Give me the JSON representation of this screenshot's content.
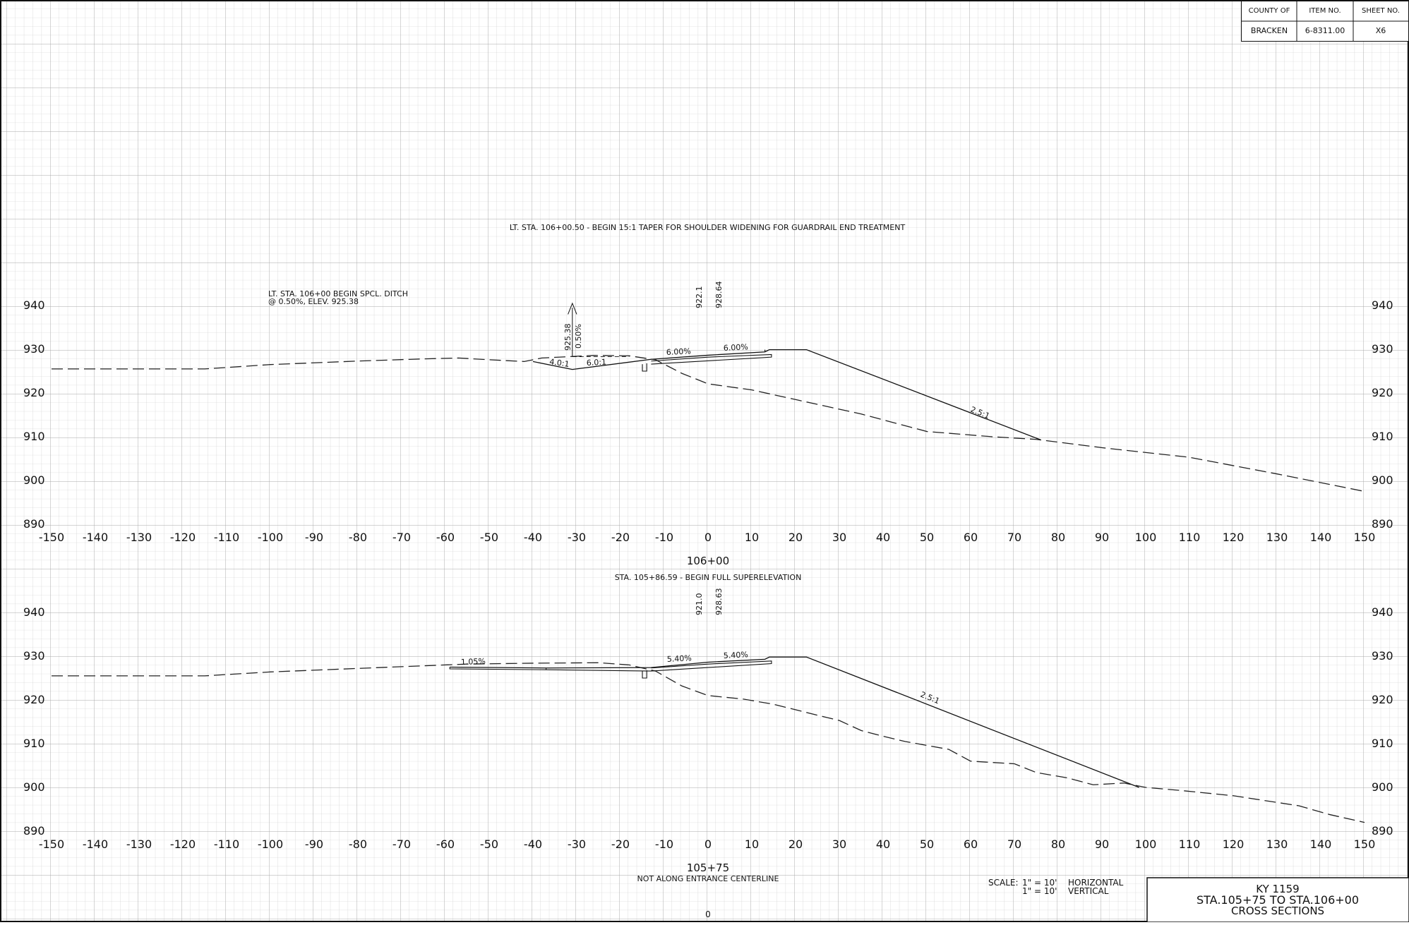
{
  "title_block": {
    "headers": [
      "COUNTY OF",
      "ITEM NO.",
      "SHEET NO."
    ],
    "values": [
      "BRACKEN",
      "6-8311.00",
      "X6"
    ]
  },
  "upper_section": {
    "station": "106+00",
    "note_taper": "LT. STA. 106+00.50 - BEGIN 15:1 TAPER FOR SHOULDER WIDENING FOR GUARDRAIL END TREATMENT",
    "note_ditch_line1": "LT. STA. 106+00 BEGIN SPCL. DITCH",
    "note_ditch_line2": "@ 0.50%, ELEV. 925.38",
    "elev_existing": "922.1",
    "elev_proposed": "928.64",
    "ditch_elev": "925.38",
    "ditch_grade": "0.50%",
    "slope_4to1": "4.0:1",
    "slope_6to1": "6.0:1",
    "lane_slope_left": "6.00%",
    "lane_slope_right": "6.00%",
    "fill_slope": "2.5:1"
  },
  "lower_section": {
    "station": "105+75",
    "note_superelevation": "STA. 105+86.59 - BEGIN FULL SUPERELEVATION",
    "note_centerline": "NOT ALONG ENTRANCE CENTERLINE",
    "elev_existing": "921.0",
    "elev_proposed": "928.63",
    "entrance_slope": "1.05%",
    "lane_slope_left": "5.40%",
    "lane_slope_right": "5.40%",
    "fill_slope": "2.5:1"
  },
  "axes": {
    "offsets": [
      "-150",
      "-140",
      "-130",
      "-120",
      "-110",
      "-100",
      "-90",
      "-80",
      "-70",
      "-60",
      "-50",
      "-40",
      "-30",
      "-20",
      "-10",
      "0",
      "10",
      "20",
      "30",
      "40",
      "50",
      "60",
      "70",
      "80",
      "90",
      "100",
      "110",
      "120",
      "130",
      "140",
      "150"
    ],
    "elevations": [
      "890",
      "900",
      "910",
      "920",
      "930",
      "940"
    ]
  },
  "scale": {
    "label": "SCALE:",
    "horizontal": "1\" = 10'",
    "horizontal_label": "HORIZONTAL",
    "vertical": "1\" = 10'",
    "vertical_label": "VERTICAL"
  },
  "sheet_title": {
    "line1": "KY 1159",
    "line2": "STA.105+75 TO STA.106+00",
    "line3": "CROSS SECTIONS"
  },
  "page_number": "0"
}
